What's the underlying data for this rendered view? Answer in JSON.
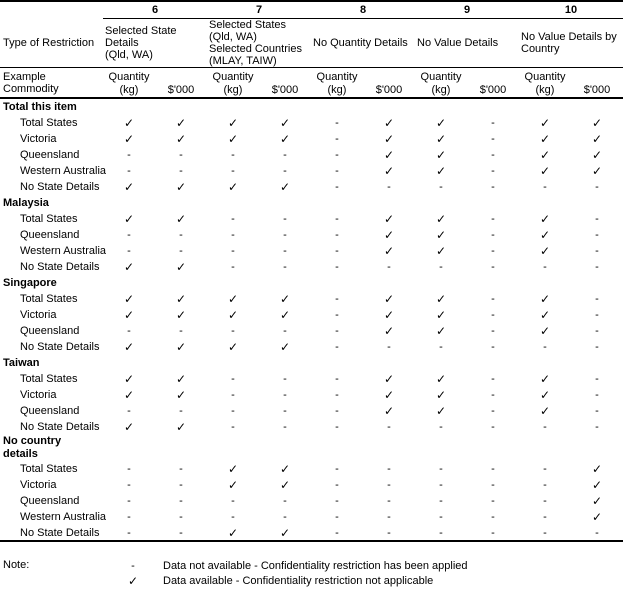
{
  "table": {
    "restriction_label": "Type of Restriction",
    "example_label": "Example Commodity",
    "quantity_header_lines": [
      "Quantity",
      "(kg)"
    ],
    "value_header": "$'000",
    "symbols": {
      "check": "✓",
      "dash": "-"
    },
    "columns": [
      {
        "number": "6",
        "restriction_lines": [
          "Selected State",
          "Details",
          "(Qld, WA)"
        ]
      },
      {
        "number": "7",
        "restriction_lines": [
          "Selected States",
          "(Qld, WA)",
          "Selected Countries",
          "(MLAY, TAIW)"
        ]
      },
      {
        "number": "8",
        "restriction_lines": [
          "No Quantity Details"
        ]
      },
      {
        "number": "9",
        "restriction_lines": [
          "No Value Details"
        ]
      },
      {
        "number": "10",
        "restriction_lines": [
          "No Value Details by",
          "Country"
        ]
      }
    ],
    "groups": [
      {
        "label_lines": [
          "Total this item"
        ],
        "rows": [
          {
            "label": "Total States",
            "cells": [
              "✓",
              "✓",
              "✓",
              "✓",
              "-",
              "✓",
              "✓",
              "-",
              "✓",
              "✓"
            ]
          },
          {
            "label": "Victoria",
            "cells": [
              "✓",
              "✓",
              "✓",
              "✓",
              "-",
              "✓",
              "✓",
              "-",
              "✓",
              "✓"
            ]
          },
          {
            "label": "Queensland",
            "cells": [
              "-",
              "-",
              "-",
              "-",
              "-",
              "✓",
              "✓",
              "-",
              "✓",
              "✓"
            ]
          },
          {
            "label": "Western Australia",
            "cells": [
              "-",
              "-",
              "-",
              "-",
              "-",
              "✓",
              "✓",
              "-",
              "✓",
              "✓"
            ]
          },
          {
            "label": "No State Details",
            "cells": [
              "✓",
              "✓",
              "✓",
              "✓",
              "-",
              "-",
              "-",
              "-",
              "-",
              "-"
            ]
          }
        ]
      },
      {
        "label_lines": [
          "Malaysia"
        ],
        "rows": [
          {
            "label": "Total States",
            "cells": [
              "✓",
              "✓",
              "-",
              "-",
              "-",
              "✓",
              "✓",
              "-",
              "✓",
              "-"
            ]
          },
          {
            "label": "Queensland",
            "cells": [
              "-",
              "-",
              "-",
              "-",
              "-",
              "✓",
              "✓",
              "-",
              "✓",
              "-"
            ]
          },
          {
            "label": "Western Australia",
            "cells": [
              "-",
              "-",
              "-",
              "-",
              "-",
              "✓",
              "✓",
              "-",
              "✓",
              "-"
            ]
          },
          {
            "label": "No State Details",
            "cells": [
              "✓",
              "✓",
              "-",
              "-",
              "-",
              "-",
              "-",
              "-",
              "-",
              "-"
            ]
          }
        ]
      },
      {
        "label_lines": [
          "Singapore"
        ],
        "rows": [
          {
            "label": "Total States",
            "cells": [
              "✓",
              "✓",
              "✓",
              "✓",
              "-",
              "✓",
              "✓",
              "-",
              "✓",
              "-"
            ]
          },
          {
            "label": "Victoria",
            "cells": [
              "✓",
              "✓",
              "✓",
              "✓",
              "-",
              "✓",
              "✓",
              "-",
              "✓",
              "-"
            ]
          },
          {
            "label": "Queensland",
            "cells": [
              "-",
              "-",
              "-",
              "-",
              "-",
              "✓",
              "✓",
              "-",
              "✓",
              "-"
            ]
          },
          {
            "label": "No State Details",
            "cells": [
              "✓",
              "✓",
              "✓",
              "✓",
              "-",
              "-",
              "-",
              "-",
              "-",
              "-"
            ]
          }
        ]
      },
      {
        "label_lines": [
          "Taiwan"
        ],
        "rows": [
          {
            "label": "Total States",
            "cells": [
              "✓",
              "✓",
              "-",
              "-",
              "-",
              "✓",
              "✓",
              "-",
              "✓",
              "-"
            ]
          },
          {
            "label": "Victoria",
            "cells": [
              "✓",
              "✓",
              "-",
              "-",
              "-",
              "✓",
              "✓",
              "-",
              "✓",
              "-"
            ]
          },
          {
            "label": "Queensland",
            "cells": [
              "-",
              "-",
              "-",
              "-",
              "-",
              "✓",
              "✓",
              "-",
              "✓",
              "-"
            ]
          },
          {
            "label": "No State Details",
            "cells": [
              "✓",
              "✓",
              "-",
              "-",
              "-",
              "-",
              "-",
              "-",
              "-",
              "-"
            ]
          }
        ]
      },
      {
        "label_lines": [
          "No country",
          "details"
        ],
        "rows": [
          {
            "label": "Total States",
            "cells": [
              "-",
              "-",
              "✓",
              "✓",
              "-",
              "-",
              "-",
              "-",
              "-",
              "✓"
            ]
          },
          {
            "label": "Victoria",
            "cells": [
              "-",
              "-",
              "✓",
              "✓",
              "-",
              "-",
              "-",
              "-",
              "-",
              "✓"
            ]
          },
          {
            "label": "Queensland",
            "cells": [
              "-",
              "-",
              "-",
              "-",
              "-",
              "-",
              "-",
              "-",
              "-",
              "✓"
            ]
          },
          {
            "label": "Western Australia",
            "cells": [
              "-",
              "-",
              "-",
              "-",
              "-",
              "-",
              "-",
              "-",
              "-",
              "✓"
            ]
          },
          {
            "label": "No State Details",
            "cells": [
              "-",
              "-",
              "✓",
              "✓",
              "-",
              "-",
              "-",
              "-",
              "-",
              "-"
            ]
          }
        ]
      }
    ]
  },
  "notes": {
    "label": "Note:",
    "items": [
      {
        "symbol": "-",
        "text": "Data not available - Confidentiality restriction has been applied"
      },
      {
        "symbol": "✓",
        "text": "Data available - Confidentiality restriction not applicable"
      }
    ]
  }
}
